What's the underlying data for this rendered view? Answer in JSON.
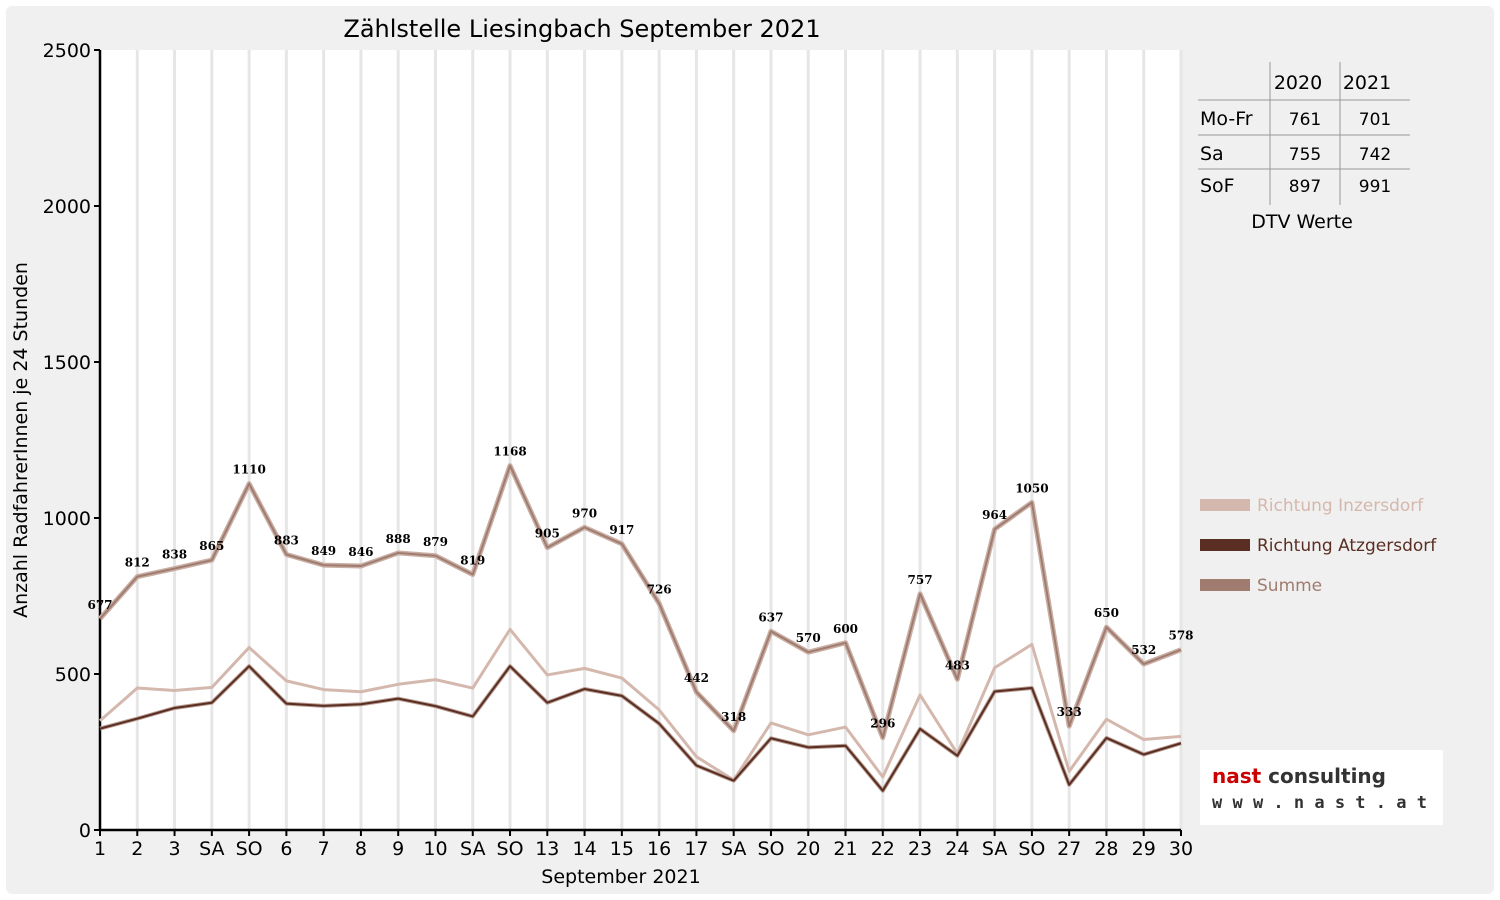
{
  "chart_data": {
    "type": "line",
    "title": "Zählstelle Liesingbach September 2021",
    "xlabel": "September 2021",
    "ylabel": "Anzahl RadfahrerInnen je 24 Stunden",
    "ylim": [
      0,
      2500
    ],
    "yticks": [
      0,
      500,
      1000,
      1500,
      2000,
      2500
    ],
    "grid": "vertical",
    "legend_position": "right",
    "categories": [
      "1",
      "2",
      "3",
      "SA",
      "SO",
      "6",
      "7",
      "8",
      "9",
      "10",
      "SA",
      "SO",
      "13",
      "14",
      "15",
      "16",
      "17",
      "SA",
      "SO",
      "20",
      "21",
      "22",
      "23",
      "24",
      "SA",
      "SO",
      "27",
      "28",
      "29",
      "30"
    ],
    "category_colors": [
      "#000000",
      "#000000",
      "#000000",
      "#000000",
      "#e00000",
      "#000000",
      "#000000",
      "#000000",
      "#000000",
      "#000000",
      "#000000",
      "#e00000",
      "#000000",
      "#000000",
      "#000000",
      "#000000",
      "#000000",
      "#000000",
      "#e00000",
      "#000000",
      "#000000",
      "#000000",
      "#000000",
      "#000000",
      "#000000",
      "#e00000",
      "#000000",
      "#000000",
      "#000000",
      "#000000"
    ],
    "series": [
      {
        "name": "Richtung Inzersdorf",
        "color": "#d4b8ad",
        "values": [
          350,
          455,
          447,
          457,
          585,
          478,
          450,
          443,
          467,
          482,
          455,
          643,
          497,
          518,
          487,
          385,
          235,
          160,
          343,
          305,
          330,
          170,
          433,
          245,
          520,
          595,
          188,
          355,
          290,
          300
        ]
      },
      {
        "name": "Richtung Atzgersdorf",
        "color": "#5a2e22",
        "values": [
          325,
          357,
          391,
          408,
          525,
          405,
          398,
          403,
          421,
          397,
          364,
          525,
          408,
          452,
          430,
          341,
          207,
          158,
          294,
          265,
          270,
          126,
          324,
          238,
          444,
          455,
          145,
          295,
          242,
          278
        ]
      },
      {
        "name": "Summe",
        "color": "#a07c70",
        "values": [
          677,
          812,
          838,
          865,
          1110,
          883,
          849,
          846,
          888,
          879,
          819,
          1168,
          905,
          970,
          917,
          726,
          442,
          318,
          637,
          570,
          600,
          296,
          757,
          483,
          964,
          1050,
          333,
          650,
          532,
          578
        ],
        "data_labels": [
          "677",
          "812",
          "838",
          "865",
          "1110",
          "883",
          "849",
          "846",
          "888",
          "879",
          "819",
          "1168",
          "905",
          "970",
          "917",
          "726",
          "442",
          "318",
          "637",
          "570",
          "600",
          "296",
          "757",
          "483",
          "964",
          "1050",
          "333",
          "650",
          "532",
          "578"
        ]
      }
    ]
  },
  "dtv_table": {
    "headers": [
      "",
      "2020",
      "2021"
    ],
    "rows": [
      {
        "label": "Mo-Fr",
        "v2020": "761",
        "v2021": "701"
      },
      {
        "label": "Sa",
        "v2020": "755",
        "v2021": "742"
      },
      {
        "label": "SoF",
        "v2020": "897",
        "v2021": "991"
      }
    ],
    "caption": "DTV Werte"
  },
  "logo": {
    "brand_nast": "nast",
    "brand_consulting": "consulting",
    "url": "w w w . n a s t . a t",
    "nast_color": "#cc0000",
    "consulting_color": "#333333"
  }
}
